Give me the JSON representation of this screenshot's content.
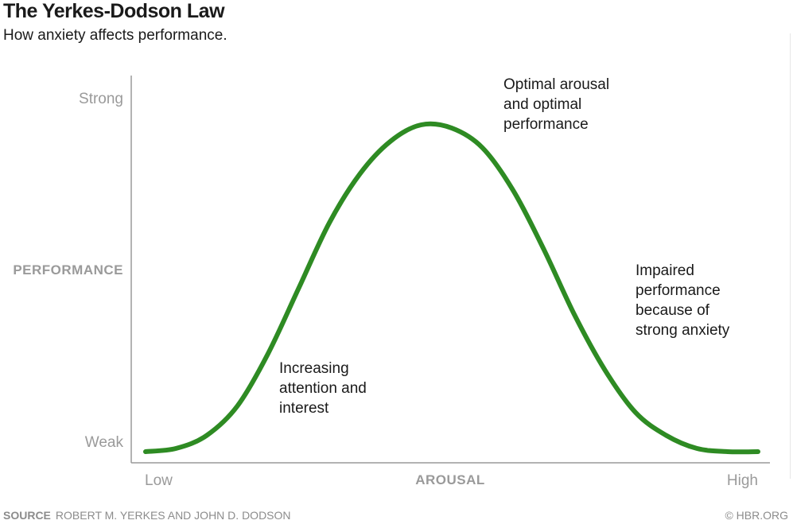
{
  "header": {
    "title": "The Yerkes-Dodson Law",
    "subtitle": "How anxiety affects performance."
  },
  "chart_data": {
    "type": "line",
    "xlabel": "AROUSAL",
    "ylabel": "PERFORMANCE",
    "x_ticks": [
      "Low",
      "High"
    ],
    "y_ticks": [
      "Weak",
      "Strong"
    ],
    "xlim": [
      0,
      1
    ],
    "ylim": [
      0,
      1
    ],
    "grid": false,
    "series": [
      {
        "color": "#2e8b23",
        "x": [
          0.0,
          0.05,
          0.1,
          0.15,
          0.2,
          0.25,
          0.3,
          0.35,
          0.4,
          0.45,
          0.5,
          0.55,
          0.6,
          0.65,
          0.7,
          0.75,
          0.8,
          0.85,
          0.9,
          0.95,
          1.0
        ],
        "y": [
          0.0,
          0.01,
          0.05,
          0.14,
          0.3,
          0.5,
          0.7,
          0.85,
          0.95,
          1.0,
          0.99,
          0.93,
          0.8,
          0.62,
          0.42,
          0.25,
          0.12,
          0.05,
          0.01,
          0.0,
          0.0
        ]
      }
    ],
    "annotations": [
      {
        "lines": [
          "Optimal arousal",
          "and optimal",
          "performance"
        ],
        "x": 0.59,
        "y": 1.12
      },
      {
        "lines": [
          "Impaired",
          "performance",
          "because of",
          "strong anxiety"
        ],
        "x": 0.8,
        "y": 0.62
      },
      {
        "lines": [
          "Increasing",
          "attention and",
          "interest"
        ],
        "x": 0.22,
        "y": 0.25
      }
    ]
  },
  "footer": {
    "source_label": "SOURCE",
    "source_text": "ROBERT M. YERKES AND JOHN D. DODSON",
    "credit": "© HBR.ORG"
  }
}
